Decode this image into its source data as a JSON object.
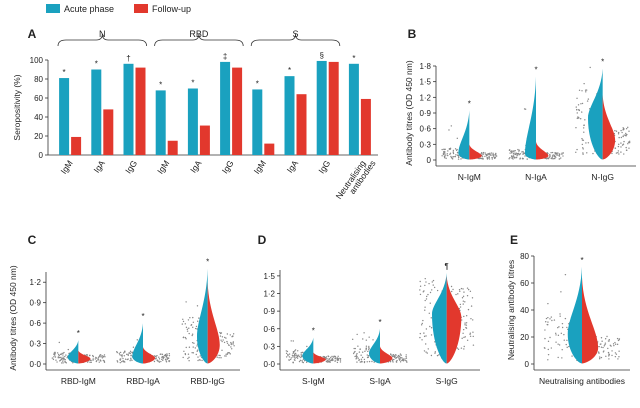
{
  "colors": {
    "acute": "#1aa1bf",
    "followup": "#e2382d",
    "axis": "#333333",
    "text": "#222222",
    "dots": "#888888"
  },
  "legend": [
    {
      "label": "Acute phase",
      "color": "#1aa1bf"
    },
    {
      "label": "Follow-up",
      "color": "#e2382d"
    }
  ],
  "chart_data": [
    {
      "panel": "A",
      "type": "bar",
      "ylabel": "Seropositivity (%)",
      "ylim": [
        0,
        100
      ],
      "yticks": [
        0,
        20,
        40,
        60,
        80,
        100
      ],
      "groups": [
        {
          "label": "N",
          "span": [
            0,
            2
          ]
        },
        {
          "label": "RBD",
          "span": [
            3,
            5
          ]
        },
        {
          "label": "S",
          "span": [
            6,
            8
          ]
        }
      ],
      "categories": [
        "IgM",
        "IgA",
        "IgG",
        "IgM",
        "IgA",
        "IgG",
        "IgM",
        "IgA",
        "IgG",
        "Neutralising antibodies"
      ],
      "series": [
        {
          "name": "Acute phase",
          "values": [
            81,
            90,
            96,
            68,
            70,
            98,
            69,
            83,
            99,
            96
          ]
        },
        {
          "name": "Follow-up",
          "values": [
            19,
            48,
            92,
            15,
            31,
            92,
            12,
            64,
            98,
            59
          ]
        }
      ],
      "annotations": [
        "*",
        "*",
        "†",
        "*",
        "*",
        "‡",
        "*",
        "*",
        "§",
        "*"
      ]
    },
    {
      "panel": "B",
      "type": "violin",
      "ylabel": "Antibody titres (OD 450 nm)",
      "ylim": [
        0,
        1.8
      ],
      "yticks": [
        "0",
        "0·3",
        "0·6",
        "0·9",
        "1·2",
        "1·5",
        "1·8"
      ],
      "categories": [
        "N-IgM",
        "N-IgA",
        "N-IgG"
      ],
      "annotations": [
        "*",
        "*",
        "*"
      ],
      "series": [
        {
          "name": "Acute phase",
          "median": [
            0.13,
            0.12,
            0.8
          ],
          "max": [
            0.95,
            1.6,
            1.75
          ]
        },
        {
          "name": "Follow-up",
          "median": [
            0.08,
            0.08,
            0.38
          ],
          "max": [
            0.3,
            0.35,
            1.25
          ]
        }
      ]
    },
    {
      "panel": "C",
      "type": "violin",
      "ylabel": "Antibody titres (OD 450 nm)",
      "ylim": [
        0,
        1.35
      ],
      "yticks": [
        "0·0",
        "0·3",
        "0·6",
        "0·9",
        "1·2"
      ],
      "categories": [
        "RBD-IgM",
        "RBD-IgA",
        "RBD-IgG"
      ],
      "annotations": [
        "*",
        "*",
        "*"
      ],
      "series": [
        {
          "name": "Acute phase",
          "median": [
            0.1,
            0.11,
            0.4
          ],
          "max": [
            0.35,
            0.6,
            1.4
          ]
        },
        {
          "name": "Follow-up",
          "median": [
            0.08,
            0.09,
            0.28
          ],
          "max": [
            0.2,
            0.25,
            1.2
          ]
        }
      ]
    },
    {
      "panel": "D",
      "type": "violin",
      "ylim": [
        0,
        1.6
      ],
      "yticks": [
        "0·0",
        "0·3",
        "0·6",
        "0·9",
        "1·2",
        "1·5"
      ],
      "categories": [
        "S-IgM",
        "S-IgA",
        "S-IgG"
      ],
      "annotations": [
        "*",
        "*",
        "¶"
      ],
      "series": [
        {
          "name": "Acute phase",
          "median": [
            0.14,
            0.18,
            0.85
          ],
          "max": [
            0.45,
            0.6,
            1.55
          ]
        },
        {
          "name": "Follow-up",
          "median": [
            0.08,
            0.1,
            0.8
          ],
          "max": [
            0.2,
            0.3,
            1.5
          ]
        }
      ]
    },
    {
      "panel": "E",
      "type": "violin",
      "ylabel": "Neutralising antibody titres",
      "ylim": [
        0,
        80
      ],
      "yticks": [
        "0",
        "20",
        "40",
        "60",
        "80"
      ],
      "categories": [
        "Neutralising antibodies"
      ],
      "annotations": [
        "*"
      ],
      "series": [
        {
          "name": "Acute phase",
          "median": [
            22
          ],
          "max": [
            72
          ]
        },
        {
          "name": "Follow-up",
          "median": [
            12
          ],
          "max": [
            64
          ]
        }
      ]
    }
  ]
}
